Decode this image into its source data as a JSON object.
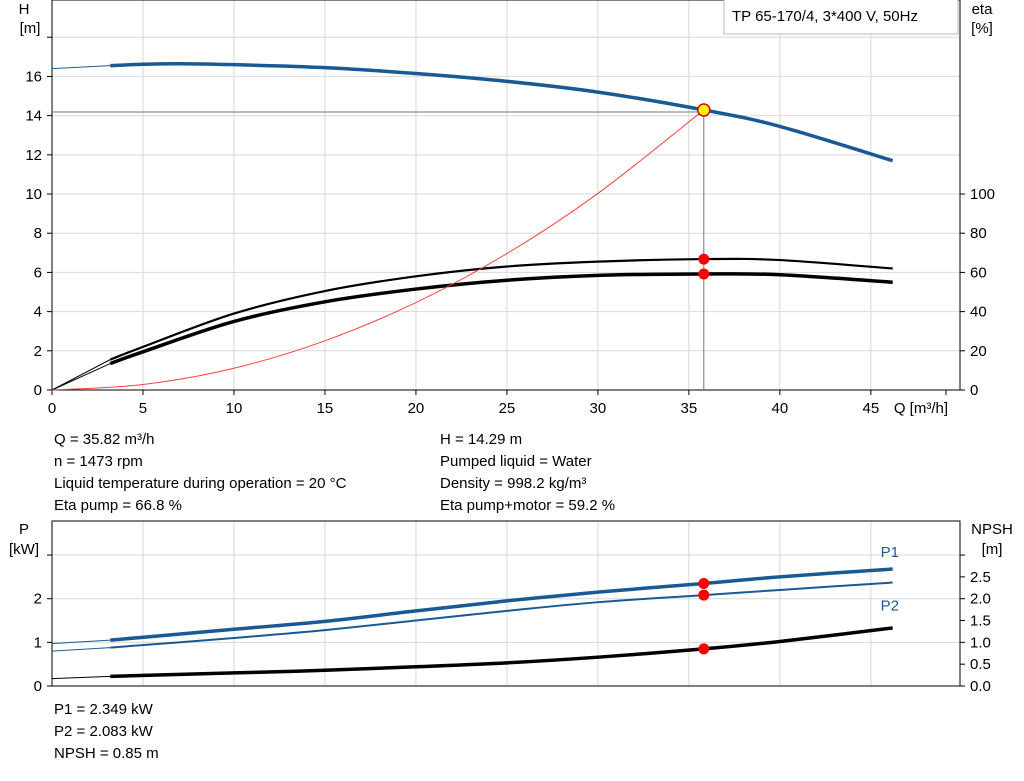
{
  "chart_data": [
    {
      "type": "line",
      "title": "TP 65-170/4, 3*400 V, 50Hz",
      "xlabel": "Q [m³/h]",
      "ylabel_left": [
        "H",
        "[m]"
      ],
      "ylabel_right": [
        "eta",
        "[%]"
      ],
      "xlim": [
        0,
        49.9
      ],
      "ylim_left": [
        0,
        19.9
      ],
      "ylim_right": [
        0,
        199
      ],
      "x_ticks": [
        0,
        5,
        10,
        15,
        20,
        25,
        30,
        35,
        40,
        45
      ],
      "y_ticks_left": [
        0,
        2,
        4,
        6,
        8,
        10,
        12,
        14,
        16
      ],
      "y_ticks_right": [
        0,
        20,
        40,
        60,
        80,
        100
      ],
      "grid": true,
      "series": [
        {
          "key": "H",
          "axis": "left",
          "color": "#1a5a94",
          "width": 3.5,
          "x": [
            0,
            3.2,
            5,
            7,
            10,
            15,
            20,
            25,
            30,
            35.82,
            40,
            46.2
          ],
          "values": [
            16.4,
            16.55,
            16.62,
            16.65,
            16.6,
            16.45,
            16.15,
            15.75,
            15.2,
            14.29,
            13.45,
            11.7
          ]
        },
        {
          "key": "eta_pump",
          "axis": "right",
          "color": "#000000",
          "width": 2.2,
          "x": [
            0,
            3.2,
            5,
            10,
            15,
            20,
            25,
            30,
            35.82,
            40,
            46.2
          ],
          "values": [
            0,
            15.5,
            22,
            39,
            50.5,
            58,
            63,
            65.5,
            66.8,
            66.3,
            62
          ]
        },
        {
          "key": "eta_pump_motor",
          "axis": "right",
          "color": "#000000",
          "width": 3.5,
          "x": [
            0,
            3.2,
            5,
            10,
            15,
            20,
            25,
            30,
            35.82,
            40,
            46.2
          ],
          "values": [
            0,
            13.5,
            19.5,
            35,
            45,
            51.5,
            56,
            58.5,
            59.2,
            58.8,
            55
          ]
        },
        {
          "key": "system_curve",
          "axis": "left",
          "color": "#ff4040",
          "width": 1,
          "x": [
            0,
            5,
            10,
            15,
            20,
            25,
            30,
            35.82
          ],
          "values": [
            0,
            0.28,
            1.11,
            2.51,
            4.46,
            6.96,
            10.03,
            14.29
          ]
        }
      ],
      "duty_point": {
        "Q": 35.82,
        "H": 14.29,
        "eta_pump": 66.8,
        "eta_pump_motor": 59.2
      }
    },
    {
      "type": "line",
      "ylabel_left": [
        "P",
        "[kW]"
      ],
      "ylabel_right": [
        "NPSH",
        "[m]"
      ],
      "xlim": [
        0,
        49.9
      ],
      "ylim_left": [
        0,
        3.78
      ],
      "ylim_right": [
        0,
        3.78
      ],
      "y_ticks_left": [
        "0",
        "1",
        "2"
      ],
      "y_ticks_right": [
        "0.0",
        "0.5",
        "1.0",
        "1.5",
        "2.0",
        "2.5"
      ],
      "grid": true,
      "series": [
        {
          "name": "P1",
          "axis": "left",
          "color": "#1a5a94",
          "width": 3.5,
          "x": [
            0,
            3.2,
            10,
            15,
            20,
            25,
            30,
            35.82,
            40,
            46.2
          ],
          "values": [
            0.97,
            1.05,
            1.3,
            1.48,
            1.72,
            1.95,
            2.15,
            2.349,
            2.5,
            2.68
          ]
        },
        {
          "name": "P2",
          "axis": "left",
          "color": "#1a5a94",
          "width": 2,
          "x": [
            0,
            3.2,
            10,
            15,
            20,
            25,
            30,
            35.82,
            40,
            46.2
          ],
          "values": [
            0.8,
            0.88,
            1.1,
            1.28,
            1.5,
            1.72,
            1.92,
            2.083,
            2.2,
            2.37
          ]
        },
        {
          "key": "NPSH",
          "axis": "right",
          "color": "#000000",
          "width": 3.5,
          "x": [
            0,
            3.2,
            10,
            15,
            20,
            25,
            30,
            35.82,
            40,
            46.2
          ],
          "values": [
            0.17,
            0.22,
            0.3,
            0.36,
            0.44,
            0.53,
            0.66,
            0.85,
            1.02,
            1.33
          ]
        }
      ],
      "duty_point": {
        "Q": 35.82,
        "P1": 2.349,
        "P2": 2.083,
        "NPSH": 0.85
      }
    }
  ],
  "info_top_left": [
    "Q = 35.82 m³/h",
    "n = 1473 rpm",
    "Liquid temperature during operation = 20 °C",
    "Eta pump = 66.8 %"
  ],
  "info_top_right": [
    "H = 14.29 m",
    "Pumped liquid = Water",
    "Density = 998.2 kg/m³",
    "Eta pump+motor = 59.2 %"
  ],
  "info_bottom": [
    "P1 = 2.349 kW",
    "P2 = 2.083 kW",
    "NPSH = 0.85 m"
  ]
}
